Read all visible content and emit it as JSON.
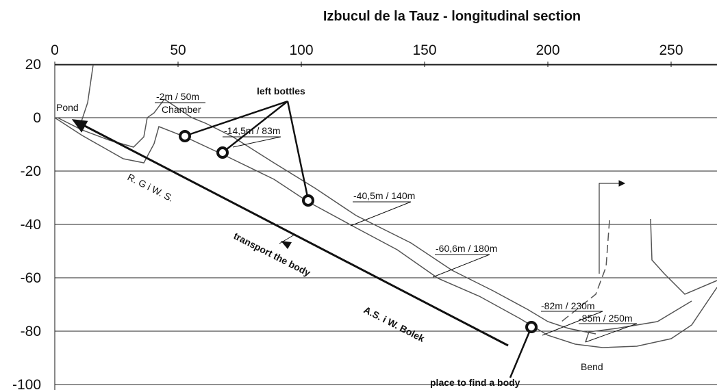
{
  "title": "Izbucul de la Tauz - longitudinal section",
  "x_ticks": [
    0,
    50,
    100,
    150,
    200,
    250
  ],
  "y_ticks": [
    20,
    0,
    -20,
    -40,
    -60,
    -80,
    -100
  ],
  "labels": {
    "pond": "Pond",
    "depth_50": "-2m / 50m",
    "chamber": "Chamber",
    "left_bottles": "left bottles",
    "depth_83": "-14,5m / 83m",
    "depth_140": "-40,5m / 140m",
    "depth_180": "-60,6m / 180m",
    "depth_230": "-82m / 230m",
    "depth_250": "-85m / 250m",
    "bend": "Bend",
    "place": "place to find a body",
    "divers_1": "R. G   i  W. S.",
    "transport": "transport the body",
    "divers_2": "A.S.  i  W. Bolek"
  }
}
